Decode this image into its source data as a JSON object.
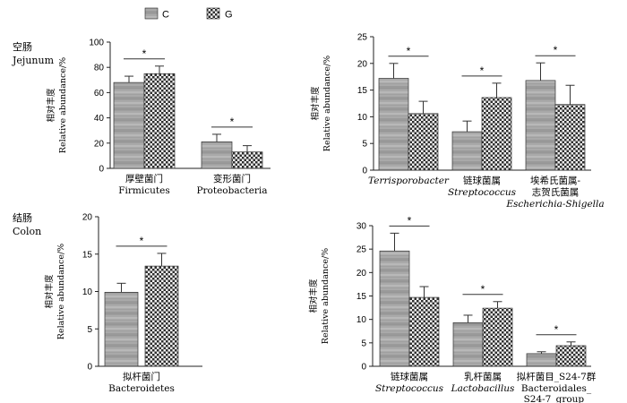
{
  "legend": [
    {
      "label": "C",
      "pattern": "patC"
    },
    {
      "label": "G",
      "pattern": "patG"
    }
  ],
  "section_labels": [
    {
      "zh": "空肠",
      "en": "Jejunum"
    },
    {
      "zh": "结肠",
      "en": "Colon"
    }
  ],
  "y_axis_label": {
    "zh": "相对丰度",
    "en": "Relative abundance/%"
  },
  "colors": {
    "axis": "#222222",
    "bar_c_light": "#b9b9b9",
    "bar_c_dark": "#8a8a8a",
    "bar_g": "#555555"
  },
  "chart_data": [
    {
      "type": "bar",
      "panel": "jejunum-phylum",
      "categories": [
        {
          "zh": "厚壁菌门",
          "en": "Firmicutes",
          "en_style": "normal"
        },
        {
          "zh": "变形菌门",
          "en": "Proteobacteria",
          "en_style": "normal"
        }
      ],
      "series": [
        {
          "name": "C",
          "values": [
            68,
            21
          ],
          "errors": [
            5,
            6
          ]
        },
        {
          "name": "G",
          "values": [
            75,
            13
          ],
          "errors": [
            6,
            5
          ]
        }
      ],
      "significance": [
        "*",
        "*"
      ],
      "ylim": [
        0,
        100
      ],
      "yticks": [
        0,
        20,
        40,
        60,
        80,
        100
      ],
      "ylabel": "相对丰度 Relative abundance/%"
    },
    {
      "type": "bar",
      "panel": "jejunum-genus",
      "categories": [
        {
          "en": "Terrisporobacter",
          "en_style": "italic"
        },
        {
          "zh": "链球菌属",
          "en": "Streptococcus",
          "en_style": "italic"
        },
        {
          "zh": "埃希氏菌属-",
          "zh2": "志贺氏菌属",
          "en": "Escherichia-Shigella",
          "en_style": "italic"
        }
      ],
      "series": [
        {
          "name": "C",
          "values": [
            17.2,
            7.2,
            16.8
          ],
          "errors": [
            2.8,
            2.0,
            3.3
          ]
        },
        {
          "name": "G",
          "values": [
            10.6,
            13.6,
            12.3
          ],
          "errors": [
            2.3,
            2.7,
            3.6
          ]
        }
      ],
      "significance": [
        "*",
        "*",
        "*"
      ],
      "ylim": [
        0,
        25
      ],
      "yticks": [
        0,
        5,
        10,
        15,
        20,
        25
      ],
      "ylabel": "相对丰度 Relative abundance/%"
    },
    {
      "type": "bar",
      "panel": "colon-phylum",
      "categories": [
        {
          "zh": "拟杆菌门",
          "en": "Bacteroidetes",
          "en_style": "normal"
        }
      ],
      "series": [
        {
          "name": "C",
          "values": [
            9.9
          ],
          "errors": [
            1.2
          ]
        },
        {
          "name": "G",
          "values": [
            13.4
          ],
          "errors": [
            1.7
          ]
        }
      ],
      "significance": [
        "*"
      ],
      "ylim": [
        0,
        20
      ],
      "yticks": [
        0,
        5,
        10,
        15,
        20
      ],
      "ylabel": "相对丰度 Relative abundance/%"
    },
    {
      "type": "bar",
      "panel": "colon-genus",
      "categories": [
        {
          "zh": "链球菌属",
          "en": "Streptococcus",
          "en_style": "italic"
        },
        {
          "zh": "乳杆菌属",
          "en": "Lactobacillus",
          "en_style": "italic"
        },
        {
          "zh": "拟杆菌目_S24-7群",
          "en": "Bacteroidales_",
          "en2": "S24-7_group_",
          "en_style": "normal"
        }
      ],
      "series": [
        {
          "name": "C",
          "values": [
            24.6,
            9.3,
            2.7
          ],
          "errors": [
            3.8,
            1.6,
            0.4
          ]
        },
        {
          "name": "G",
          "values": [
            14.7,
            12.4,
            4.4
          ],
          "errors": [
            2.3,
            1.4,
            0.8
          ]
        }
      ],
      "significance": [
        "*",
        "*",
        "*"
      ],
      "ylim": [
        0,
        30
      ],
      "yticks": [
        0,
        5,
        10,
        15,
        20,
        25,
        30
      ],
      "ylabel": "相对丰度 Relative abundance/%"
    }
  ]
}
